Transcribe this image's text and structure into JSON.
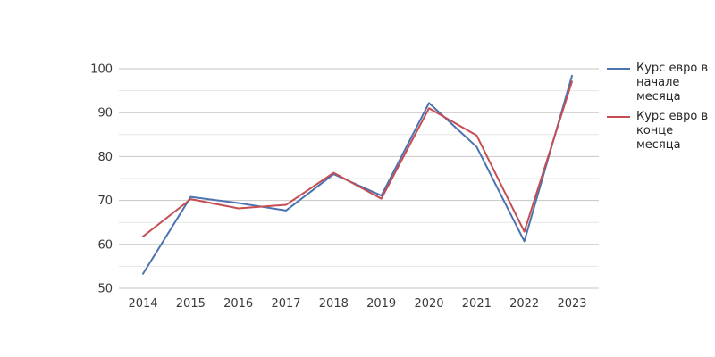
{
  "chart_data": {
    "type": "line",
    "x": [
      "2014",
      "2015",
      "2016",
      "2017",
      "2018",
      "2019",
      "2020",
      "2021",
      "2022",
      "2023"
    ],
    "series": [
      {
        "name": "Курс евро в начале месяца",
        "color": "#4c72b0",
        "values": [
          53.3,
          70.8,
          69.4,
          67.7,
          76.0,
          71.1,
          92.2,
          82.2,
          60.7,
          98.4
        ]
      },
      {
        "name": "Курс евро в конце месяца",
        "color": "#c44e52",
        "values": [
          61.8,
          70.3,
          68.2,
          69.0,
          76.3,
          70.4,
          91.0,
          84.8,
          62.9,
          97.1
        ]
      }
    ],
    "title": "",
    "xlabel": "",
    "ylabel": "",
    "ylim": [
      50,
      100
    ],
    "yticks": [
      50,
      60,
      70,
      80,
      90,
      100
    ],
    "ytick_step": 10,
    "minor_grid_step": 5,
    "grid": true,
    "legend_position": "right"
  },
  "colors": {
    "background": "#ffffff",
    "grid_major": "#c6c6c6",
    "grid_minor": "#e6e6e6",
    "tick_label": "#3a3a3a",
    "legend_text": "#262626",
    "series_blue": "#4c72b0",
    "series_red": "#c44e52"
  }
}
